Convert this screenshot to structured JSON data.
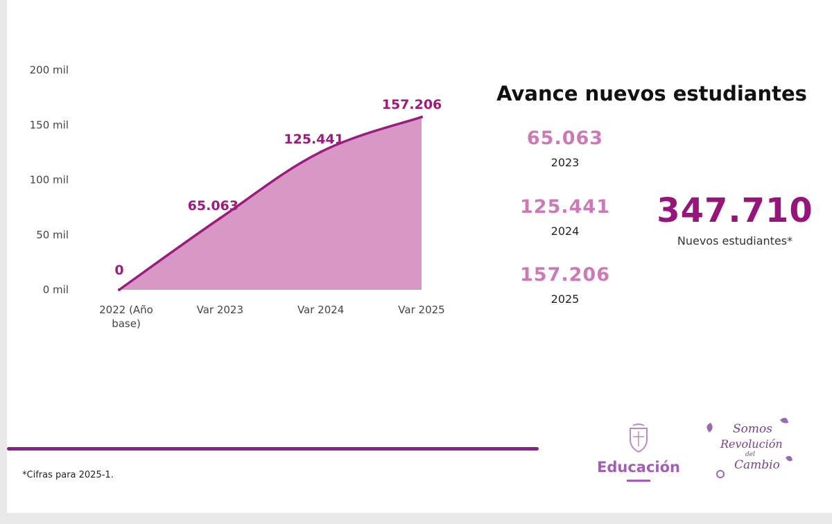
{
  "chart_data": {
    "type": "area",
    "categories": [
      "2022 (Año base)",
      "Var 2023",
      "Var 2024",
      "Var 2025"
    ],
    "category_lines": [
      [
        "2022 (Año",
        "base)"
      ],
      [
        "Var 2023"
      ],
      [
        "Var 2024"
      ],
      [
        "Var 2025"
      ]
    ],
    "values": [
      0,
      65063,
      125441,
      157206
    ],
    "data_labels": [
      "0",
      "65.063",
      "125.441",
      "157.206"
    ],
    "y_ticks": [
      0,
      50000,
      100000,
      150000,
      200000
    ],
    "y_tick_labels": [
      "0 mil",
      "50 mil",
      "100 mil",
      "150 mil",
      "200 mil"
    ],
    "ylim": [
      0,
      200000
    ],
    "line_color": "#9b1b7e",
    "fill_color": "#d898c6",
    "title": "",
    "xlabel": "",
    "ylabel": ""
  },
  "panel": {
    "title": "Avance nuevos estudiantes",
    "stats": [
      {
        "value": "65.063",
        "year": "2023"
      },
      {
        "value": "125.441",
        "year": "2024"
      },
      {
        "value": "157.206",
        "year": "2025"
      }
    ],
    "total_value": "347.710",
    "total_label": "Nuevos estudiantes*"
  },
  "footer": {
    "note": "*Cifras para 2025-1.",
    "logo_label": "Educación",
    "slogan": [
      "Somos",
      "Revolución",
      "del",
      "Cambio"
    ]
  },
  "colors": {
    "accent": "#95157a",
    "stat_pink": "#cb7ab6",
    "divider": "#8a1f86",
    "logo_purple": "#a35db6"
  }
}
